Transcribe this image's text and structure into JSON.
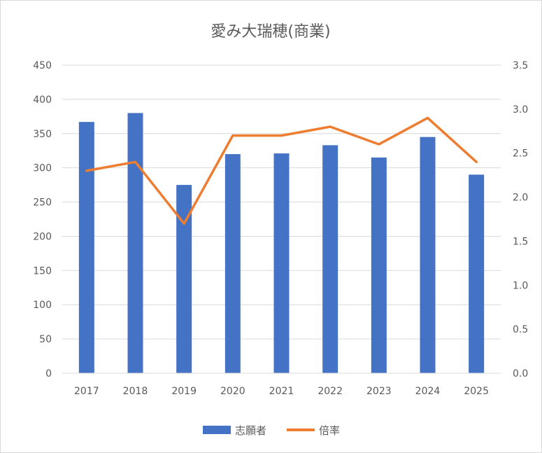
{
  "chart_data": {
    "type": "bar",
    "title": "愛み大瑞穂(商業)",
    "categories": [
      "2017",
      "2018",
      "2019",
      "2020",
      "2021",
      "2022",
      "2023",
      "2024",
      "2025"
    ],
    "series": [
      {
        "name": "志願者",
        "type": "bar",
        "axis": "left",
        "color": "#4472c4",
        "values": [
          367,
          380,
          275,
          320,
          321,
          333,
          315,
          345,
          290
        ]
      },
      {
        "name": "倍率",
        "type": "line",
        "axis": "right",
        "color": "#ed7d31",
        "values": [
          2.3,
          2.4,
          1.7,
          2.7,
          2.7,
          2.8,
          2.6,
          2.9,
          2.4
        ]
      }
    ],
    "ylim_left": [
      0,
      450
    ],
    "yticks_left": [
      "0",
      "50",
      "100",
      "150",
      "200",
      "250",
      "300",
      "350",
      "400",
      "450"
    ],
    "ylim_right": [
      0,
      3.5
    ],
    "yticks_right": [
      "0.0",
      "0.5",
      "1.0",
      "1.5",
      "2.0",
      "2.5",
      "3.0",
      "3.5"
    ],
    "grid": true,
    "legend_position": "bottom"
  }
}
